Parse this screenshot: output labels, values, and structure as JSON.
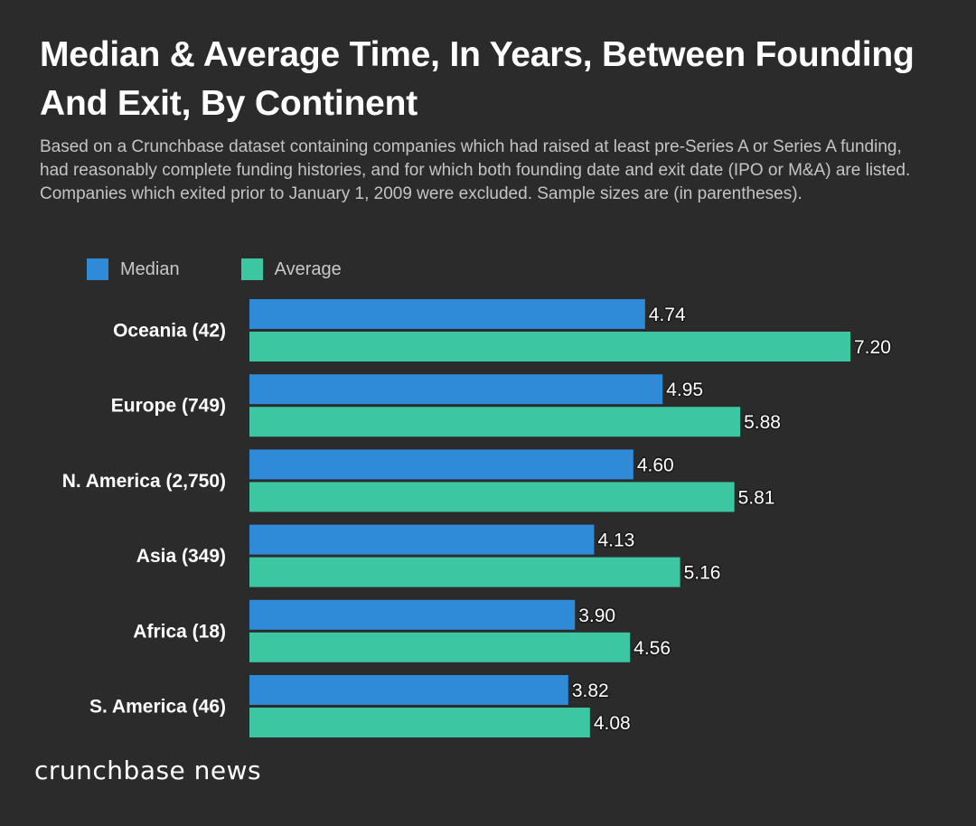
{
  "title": "Median & Average Time, In Years, Between Founding And Exit, By Continent",
  "subtitle": "Based on a Crunchbase dataset containing companies which had raised at least pre-Series A or Series A funding, had reasonably complete funding histories, and for which both founding date and exit date (IPO or M&A) are listed. Companies which exited prior to January 1, 2009 were excluded. Sample sizes are (in parentheses).",
  "footer": "crunchbase news",
  "chart_data": {
    "type": "bar",
    "orientation": "horizontal",
    "categories": [
      "Oceania (42)",
      "Europe (749)",
      "N. America (2,750)",
      "Asia (349)",
      "Africa (18)",
      "S. America (46)"
    ],
    "series": [
      {
        "name": "Median",
        "color": "#2f8ad8",
        "values": [
          4.74,
          4.95,
          4.6,
          4.13,
          3.9,
          3.82
        ],
        "labels": [
          "4.74",
          "4.95",
          "4.60",
          "4.13",
          "3.90",
          "3.82"
        ]
      },
      {
        "name": "Average",
        "color": "#3cc6a2",
        "values": [
          7.2,
          5.88,
          5.81,
          5.16,
          4.56,
          4.08
        ],
        "labels": [
          "7.20",
          "5.88",
          "5.81",
          "5.16",
          "4.56",
          "4.08"
        ]
      }
    ],
    "xlim": [
      0,
      7.2
    ],
    "grid": false,
    "legend_position": "top-left"
  }
}
